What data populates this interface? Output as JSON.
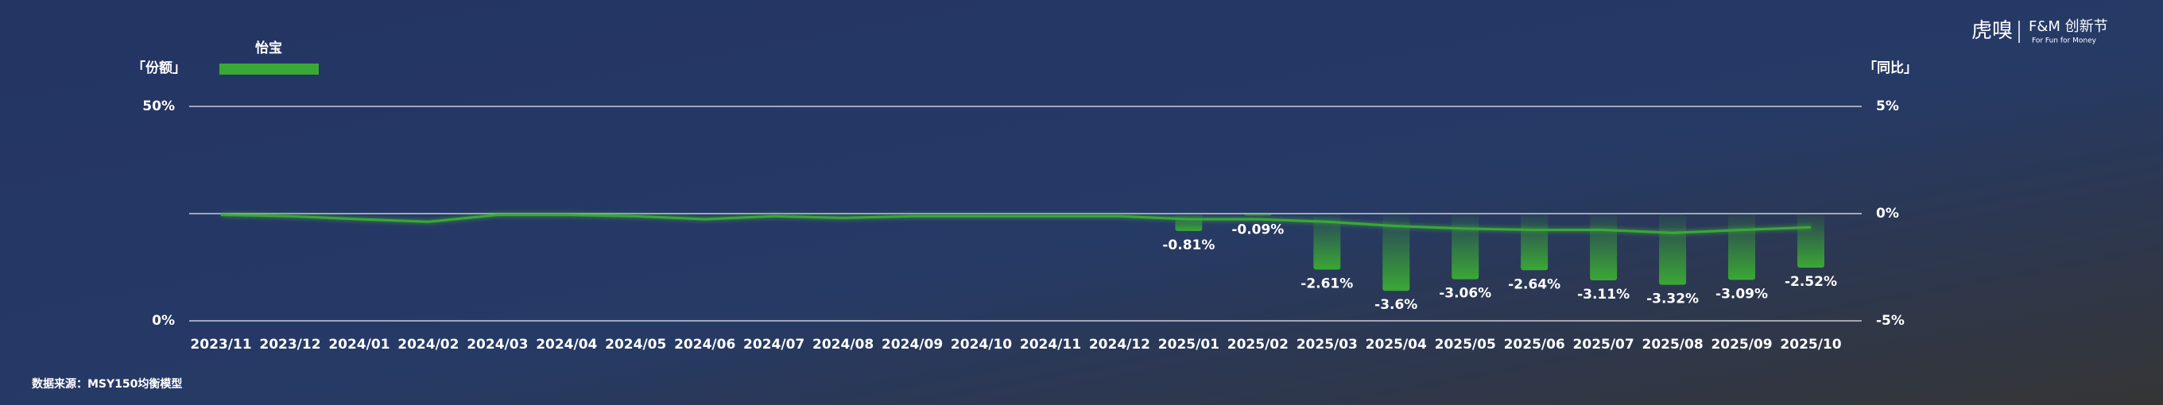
{
  "chart_data": {
    "type": "bar-line",
    "legend_label_left": "「份额」",
    "legend_label_right": "「同比」",
    "source": "数据来源：MSY150均衡模型",
    "logo": {
      "brand": "虎嗅",
      "event": "F&M 创新节",
      "slogan": "For Fun for Money"
    },
    "categories": [
      "2023/11",
      "2023/12",
      "2024/01",
      "2024/02",
      "2024/03",
      "2024/04",
      "2024/05",
      "2024/06",
      "2024/07",
      "2024/08",
      "2024/09",
      "2024/10",
      "2024/11",
      "2024/12",
      "2025/01",
      "2025/02",
      "2025/03",
      "2025/04",
      "2025/05",
      "2025/06",
      "2025/07",
      "2025/08",
      "2025/09",
      "2025/10"
    ],
    "series": [
      {
        "name": "怡宝",
        "color": "#3aa835",
        "type": "line",
        "axis": "y",
        "values": [
          24.7,
          24.4,
          23.7,
          23.1,
          24.7,
          24.7,
          24.4,
          23.7,
          24.4,
          24.0,
          24.4,
          24.4,
          24.4,
          24.4,
          23.7,
          23.7,
          23.1,
          22.1,
          21.5,
          21.2,
          21.2,
          20.5,
          21.2,
          21.8
        ]
      },
      {
        "color": "#3aa835",
        "type": "bar",
        "axis": "y2",
        "values": [
          null,
          null,
          null,
          null,
          null,
          null,
          null,
          null,
          null,
          null,
          null,
          null,
          null,
          null,
          -0.81,
          -0.09,
          -2.61,
          -3.6,
          -3.06,
          -2.64,
          -3.11,
          -3.32,
          -3.09,
          -2.52
        ],
        "value_labels": [
          null,
          null,
          null,
          null,
          null,
          null,
          null,
          null,
          null,
          null,
          null,
          null,
          null,
          null,
          "-0.81%",
          "-0.09%",
          "-2.61%",
          "-3.6%",
          "-3.06%",
          "-2.64%",
          "-3.11%",
          "-3.32%",
          "-3.09%",
          "-2.52%"
        ]
      }
    ],
    "ylim": [
      0,
      50
    ],
    "yticks": [
      {
        "value": 0,
        "label": "0%"
      },
      {
        "value": 50,
        "label": "50%"
      }
    ],
    "y2lim": [
      -5,
      5
    ],
    "y2ticks": [
      {
        "value": -5,
        "label": "-5%"
      },
      {
        "value": 0,
        "label": "0%"
      },
      {
        "value": 5,
        "label": "5%"
      }
    ],
    "grid": true
  }
}
